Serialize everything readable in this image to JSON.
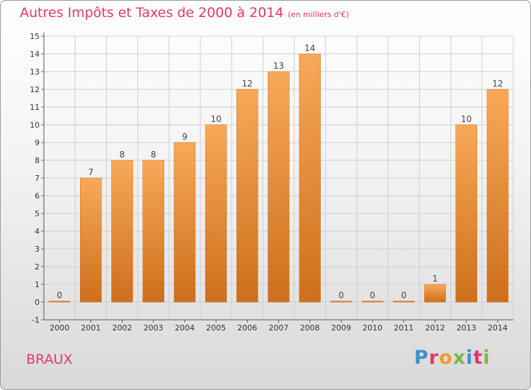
{
  "header": {
    "title": "Autres Impôts et Taxes de 2000 à 2014",
    "subtitle": "(en milliers d'€)"
  },
  "footer": {
    "city": "BRAUX",
    "logo_text": "Proxiti",
    "logo_colors": [
      "#3a8fd1",
      "#e8356b",
      "#f19a2c",
      "#7ab648",
      "#3a8fd1",
      "#e8356b",
      "#7ab648"
    ]
  },
  "colors": {
    "bar_light": "#f8a957",
    "bar_dark": "#cd6f1c",
    "title": "#e8356b",
    "grid": "#cfcfcf"
  },
  "chart_data": {
    "type": "bar",
    "categories": [
      "2000",
      "2001",
      "2002",
      "2003",
      "2004",
      "2005",
      "2006",
      "2007",
      "2008",
      "2009",
      "2010",
      "2011",
      "2012",
      "2013",
      "2014"
    ],
    "values": [
      0,
      7,
      8,
      8,
      9,
      10,
      12,
      13,
      14,
      0,
      0,
      0,
      1,
      10,
      12
    ],
    "data_labels": [
      "0",
      "7",
      "8",
      "8",
      "9",
      "10",
      "12",
      "13",
      "14",
      "0",
      "0",
      "0",
      "1",
      "10",
      "12"
    ],
    "y_ticks": [
      "-1",
      "0",
      "1",
      "2",
      "3",
      "4",
      "5",
      "6",
      "7",
      "8",
      "9",
      "10",
      "11",
      "12",
      "13",
      "14",
      "15"
    ],
    "ylim": [
      -1,
      15
    ],
    "grid": true,
    "title": "Autres Impôts et Taxes de 2000 à 2014",
    "xlabel": "",
    "ylabel": ""
  }
}
